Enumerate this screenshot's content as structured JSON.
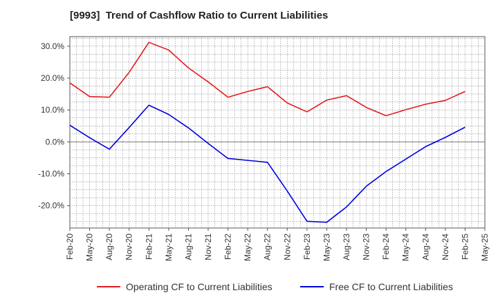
{
  "chart_data": {
    "type": "line",
    "title": "[9993]  Trend of Cashflow Ratio to Current Liabilities",
    "xlabel": "",
    "ylabel": "",
    "x": [
      "Feb-20",
      "May-20",
      "Aug-20",
      "Nov-20",
      "Feb-21",
      "May-21",
      "Aug-21",
      "Nov-21",
      "Feb-22",
      "May-22",
      "Aug-22",
      "Nov-22",
      "Feb-23",
      "May-23",
      "Aug-23",
      "Nov-23",
      "Feb-24",
      "May-24",
      "Aug-24",
      "Nov-24",
      "Feb-25"
    ],
    "x_ticks": [
      "Feb-20",
      "May-20",
      "Aug-20",
      "Nov-20",
      "Feb-21",
      "May-21",
      "Aug-21",
      "Nov-21",
      "Feb-22",
      "May-22",
      "Aug-22",
      "Nov-22",
      "Feb-23",
      "May-23",
      "Aug-23",
      "Nov-23",
      "Feb-24",
      "May-24",
      "Aug-24",
      "Nov-24",
      "Feb-25",
      "May-25"
    ],
    "y_ticks": [
      "30.0%",
      "20.0%",
      "10.0%",
      "0.0%",
      "-10.0%",
      "-20.0%"
    ],
    "y_tick_values": [
      30,
      20,
      10,
      0,
      -10,
      -20
    ],
    "ylim": [
      -27,
      33
    ],
    "grid": true,
    "legend_position": "bottom",
    "series": [
      {
        "name": "Operating CF to Current Liabilities",
        "color": "#e31a1c",
        "values": [
          18.5,
          14.2,
          14.0,
          21.8,
          31.2,
          28.8,
          23.2,
          18.8,
          14.0,
          15.8,
          17.3,
          12.2,
          9.4,
          13.1,
          14.5,
          10.8,
          8.2,
          10.1,
          11.8,
          13.0,
          15.8
        ]
      },
      {
        "name": "Free CF to Current Liabilities",
        "color": "#0000e0",
        "values": [
          5.2,
          1.3,
          -2.3,
          4.5,
          11.5,
          8.6,
          4.4,
          -0.5,
          -5.2,
          -5.8,
          -6.4,
          -15.4,
          -24.9,
          -25.2,
          -20.4,
          -13.9,
          -9.3,
          -5.4,
          -1.5,
          1.4,
          4.6
        ]
      }
    ]
  }
}
